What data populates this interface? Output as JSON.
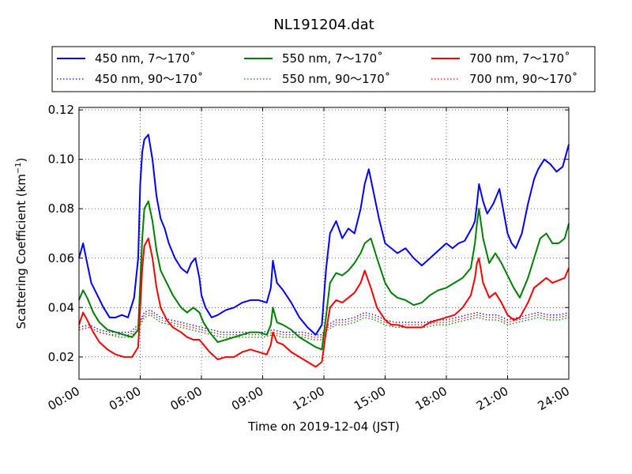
{
  "chart_data": {
    "type": "line",
    "title": "NL191204.dat",
    "xlabel": "Time on 2019-12-04 (JST)",
    "ylabel": "Scattering Coefficient (km",
    "ylabel_sup": "−1",
    "ylabel_close": ")",
    "xlim": [
      0,
      24
    ],
    "ylim": [
      0.011,
      0.121
    ],
    "x_tick_values": [
      0,
      3,
      6,
      9,
      12,
      15,
      18,
      21,
      24
    ],
    "x_tick_labels": [
      "00:00",
      "03:00",
      "06:00",
      "09:00",
      "12:00",
      "15:00",
      "18:00",
      "21:00",
      "24:00"
    ],
    "y_tick_values": [
      0.02,
      0.04,
      0.06,
      0.08,
      0.1,
      0.12
    ],
    "y_tick_labels": [
      "0.02",
      "0.04",
      "0.06",
      "0.08",
      "0.10",
      "0.12"
    ],
    "grid": true,
    "legend_position": "top",
    "series": [
      {
        "name": "450 nm, 7～170˚",
        "color": "#0000ff",
        "style": "solid",
        "x": [
          0,
          0.2,
          0.4,
          0.6,
          0.9,
          1.2,
          1.5,
          1.8,
          2.1,
          2.4,
          2.7,
          2.9,
          3.0,
          3.1,
          3.2,
          3.4,
          3.6,
          3.8,
          4.0,
          4.2,
          4.4,
          4.7,
          5.0,
          5.3,
          5.5,
          5.7,
          5.9,
          6.0,
          6.2,
          6.5,
          6.8,
          7.2,
          7.6,
          8.0,
          8.4,
          8.8,
          9.2,
          9.4,
          9.5,
          9.7,
          10.0,
          10.4,
          10.8,
          11.2,
          11.6,
          11.9,
          12.1,
          12.3,
          12.6,
          12.9,
          13.2,
          13.5,
          13.8,
          14.0,
          14.2,
          14.4,
          14.7,
          15.0,
          15.3,
          15.6,
          16.0,
          16.4,
          16.8,
          17.2,
          17.6,
          18.0,
          18.3,
          18.6,
          18.9,
          19.1,
          19.3,
          19.4,
          19.5,
          19.6,
          19.8,
          20.0,
          20.3,
          20.6,
          21.0,
          21.2,
          21.4,
          21.7,
          22.0,
          22.3,
          22.5,
          22.8,
          23.1,
          23.4,
          23.7,
          24
        ],
        "y": [
          0.06,
          0.066,
          0.058,
          0.05,
          0.045,
          0.04,
          0.036,
          0.036,
          0.037,
          0.036,
          0.044,
          0.06,
          0.09,
          0.103,
          0.108,
          0.11,
          0.1,
          0.085,
          0.076,
          0.072,
          0.066,
          0.06,
          0.056,
          0.054,
          0.058,
          0.06,
          0.052,
          0.045,
          0.04,
          0.036,
          0.037,
          0.039,
          0.04,
          0.042,
          0.043,
          0.043,
          0.042,
          0.048,
          0.059,
          0.05,
          0.047,
          0.042,
          0.036,
          0.032,
          0.029,
          0.033,
          0.055,
          0.07,
          0.075,
          0.068,
          0.072,
          0.07,
          0.08,
          0.09,
          0.096,
          0.088,
          0.076,
          0.066,
          0.064,
          0.062,
          0.064,
          0.06,
          0.057,
          0.06,
          0.063,
          0.066,
          0.064,
          0.066,
          0.067,
          0.07,
          0.073,
          0.075,
          0.082,
          0.09,
          0.083,
          0.078,
          0.082,
          0.088,
          0.07,
          0.066,
          0.064,
          0.07,
          0.082,
          0.092,
          0.096,
          0.1,
          0.098,
          0.095,
          0.097,
          0.106
        ]
      },
      {
        "name": "550 nm, 7～170˚",
        "color": "#008000",
        "style": "solid",
        "x": [
          0,
          0.2,
          0.4,
          0.7,
          1.0,
          1.4,
          1.8,
          2.2,
          2.6,
          2.9,
          3.0,
          3.1,
          3.2,
          3.4,
          3.6,
          3.8,
          4.0,
          4.3,
          4.6,
          5.0,
          5.3,
          5.6,
          5.9,
          6.1,
          6.4,
          6.8,
          7.2,
          7.6,
          8.0,
          8.4,
          8.8,
          9.2,
          9.4,
          9.5,
          9.7,
          10.0,
          10.4,
          10.8,
          11.2,
          11.6,
          11.9,
          12.1,
          12.3,
          12.6,
          12.9,
          13.2,
          13.5,
          13.8,
          14.0,
          14.3,
          14.6,
          15.0,
          15.3,
          15.6,
          16.0,
          16.4,
          16.8,
          17.2,
          17.6,
          18.0,
          18.4,
          18.8,
          19.2,
          19.4,
          19.5,
          19.6,
          19.8,
          20.1,
          20.4,
          20.7,
          21.0,
          21.3,
          21.6,
          22.0,
          22.3,
          22.6,
          22.9,
          23.2,
          23.5,
          23.8,
          24
        ],
        "y": [
          0.043,
          0.047,
          0.044,
          0.038,
          0.034,
          0.031,
          0.03,
          0.029,
          0.028,
          0.031,
          0.05,
          0.068,
          0.08,
          0.083,
          0.075,
          0.063,
          0.055,
          0.05,
          0.045,
          0.04,
          0.038,
          0.04,
          0.038,
          0.034,
          0.03,
          0.026,
          0.027,
          0.028,
          0.029,
          0.03,
          0.03,
          0.029,
          0.033,
          0.04,
          0.034,
          0.033,
          0.031,
          0.028,
          0.026,
          0.024,
          0.023,
          0.036,
          0.05,
          0.054,
          0.053,
          0.055,
          0.058,
          0.062,
          0.066,
          0.068,
          0.06,
          0.05,
          0.046,
          0.044,
          0.043,
          0.041,
          0.042,
          0.045,
          0.047,
          0.048,
          0.05,
          0.052,
          0.056,
          0.066,
          0.074,
          0.08,
          0.068,
          0.058,
          0.062,
          0.058,
          0.053,
          0.048,
          0.044,
          0.052,
          0.06,
          0.068,
          0.07,
          0.066,
          0.066,
          0.068,
          0.074
        ]
      },
      {
        "name": "700 nm, 7～170˚",
        "color": "#ff0000",
        "style": "solid",
        "x": [
          0,
          0.2,
          0.4,
          0.7,
          1.0,
          1.4,
          1.8,
          2.2,
          2.6,
          2.9,
          3.0,
          3.1,
          3.2,
          3.4,
          3.6,
          3.8,
          4.0,
          4.3,
          4.6,
          5.0,
          5.3,
          5.6,
          5.9,
          6.1,
          6.4,
          6.8,
          7.2,
          7.6,
          8.0,
          8.4,
          8.8,
          9.2,
          9.4,
          9.5,
          9.7,
          10.0,
          10.4,
          10.8,
          11.2,
          11.6,
          11.9,
          12.1,
          12.3,
          12.6,
          12.9,
          13.2,
          13.5,
          13.8,
          14.0,
          14.3,
          14.6,
          15.0,
          15.3,
          15.6,
          16.0,
          16.4,
          16.8,
          17.2,
          17.6,
          18.0,
          18.4,
          18.8,
          19.2,
          19.4,
          19.5,
          19.6,
          19.8,
          20.1,
          20.4,
          20.7,
          21.0,
          21.3,
          21.6,
          22.0,
          22.3,
          22.6,
          22.9,
          23.2,
          23.5,
          23.8,
          24
        ],
        "y": [
          0.033,
          0.038,
          0.035,
          0.03,
          0.026,
          0.023,
          0.021,
          0.02,
          0.02,
          0.024,
          0.04,
          0.056,
          0.065,
          0.068,
          0.06,
          0.048,
          0.04,
          0.035,
          0.032,
          0.03,
          0.028,
          0.027,
          0.027,
          0.025,
          0.022,
          0.019,
          0.02,
          0.02,
          0.022,
          0.023,
          0.022,
          0.021,
          0.025,
          0.03,
          0.026,
          0.025,
          0.022,
          0.02,
          0.018,
          0.016,
          0.018,
          0.03,
          0.04,
          0.043,
          0.042,
          0.044,
          0.046,
          0.05,
          0.055,
          0.048,
          0.04,
          0.035,
          0.033,
          0.033,
          0.032,
          0.032,
          0.032,
          0.034,
          0.035,
          0.036,
          0.037,
          0.04,
          0.045,
          0.052,
          0.058,
          0.06,
          0.05,
          0.044,
          0.046,
          0.042,
          0.037,
          0.035,
          0.036,
          0.042,
          0.048,
          0.05,
          0.052,
          0.05,
          0.051,
          0.052,
          0.056
        ]
      },
      {
        "name": "450 nm, 90～170˚",
        "color": "#0000ff",
        "style": "dotted",
        "x": [
          0,
          0.5,
          1.0,
          1.5,
          2.0,
          2.5,
          2.9,
          3.2,
          3.5,
          4.0,
          4.5,
          5.0,
          5.5,
          6.0,
          6.5,
          7.0,
          7.5,
          8.0,
          8.5,
          9.0,
          9.5,
          10.0,
          10.5,
          11.0,
          11.5,
          11.9,
          12.2,
          12.6,
          13.0,
          13.5,
          14.0,
          14.5,
          15.0,
          15.5,
          16.0,
          16.5,
          17.0,
          17.5,
          18.0,
          18.5,
          19.0,
          19.5,
          20.0,
          20.5,
          21.0,
          21.5,
          22.0,
          22.5,
          23.0,
          23.5,
          24
        ],
        "y": [
          0.032,
          0.033,
          0.031,
          0.03,
          0.03,
          0.03,
          0.033,
          0.038,
          0.039,
          0.036,
          0.035,
          0.034,
          0.033,
          0.032,
          0.031,
          0.03,
          0.03,
          0.03,
          0.03,
          0.03,
          0.031,
          0.03,
          0.03,
          0.03,
          0.029,
          0.029,
          0.033,
          0.035,
          0.035,
          0.036,
          0.038,
          0.037,
          0.035,
          0.034,
          0.034,
          0.034,
          0.034,
          0.035,
          0.035,
          0.036,
          0.037,
          0.038,
          0.037,
          0.037,
          0.035,
          0.036,
          0.037,
          0.038,
          0.037,
          0.037,
          0.038
        ]
      },
      {
        "name": "550 nm, 90～170˚",
        "color": "#008000",
        "style": "dotted",
        "x": [
          0,
          0.5,
          1.0,
          1.5,
          2.0,
          2.5,
          2.9,
          3.2,
          3.5,
          4.0,
          4.5,
          5.0,
          5.5,
          6.0,
          6.5,
          7.0,
          7.5,
          8.0,
          8.5,
          9.0,
          9.5,
          10.0,
          10.5,
          11.0,
          11.5,
          11.9,
          12.2,
          12.6,
          13.0,
          13.5,
          14.0,
          14.5,
          15.0,
          15.5,
          16.0,
          16.5,
          17.0,
          17.5,
          18.0,
          18.5,
          19.0,
          19.5,
          20.0,
          20.5,
          21.0,
          21.5,
          22.0,
          22.5,
          23.0,
          23.5,
          24
        ],
        "y": [
          0.031,
          0.032,
          0.03,
          0.029,
          0.028,
          0.028,
          0.031,
          0.036,
          0.037,
          0.034,
          0.033,
          0.032,
          0.031,
          0.03,
          0.029,
          0.028,
          0.028,
          0.028,
          0.028,
          0.028,
          0.029,
          0.028,
          0.028,
          0.028,
          0.027,
          0.027,
          0.031,
          0.033,
          0.033,
          0.034,
          0.036,
          0.035,
          0.033,
          0.032,
          0.032,
          0.032,
          0.032,
          0.033,
          0.033,
          0.034,
          0.035,
          0.036,
          0.035,
          0.035,
          0.033,
          0.034,
          0.035,
          0.036,
          0.035,
          0.035,
          0.036
        ]
      },
      {
        "name": "700 nm, 90～170˚",
        "color": "#ff0000",
        "style": "dotted",
        "x": [
          0,
          0.5,
          1.0,
          1.5,
          2.0,
          2.5,
          2.9,
          3.2,
          3.5,
          4.0,
          4.5,
          5.0,
          5.5,
          6.0,
          6.5,
          7.0,
          7.5,
          8.0,
          8.5,
          9.0,
          9.5,
          10.0,
          10.5,
          11.0,
          11.5,
          11.9,
          12.2,
          12.6,
          13.0,
          13.5,
          14.0,
          14.5,
          15.0,
          15.5,
          16.0,
          16.5,
          17.0,
          17.5,
          18.0,
          18.5,
          19.0,
          19.5,
          20.0,
          20.5,
          21.0,
          21.5,
          22.0,
          22.5,
          23.0,
          23.5,
          24
        ],
        "y": [
          0.031,
          0.032,
          0.03,
          0.029,
          0.029,
          0.029,
          0.032,
          0.037,
          0.038,
          0.035,
          0.034,
          0.033,
          0.032,
          0.031,
          0.03,
          0.029,
          0.029,
          0.029,
          0.029,
          0.029,
          0.03,
          0.029,
          0.029,
          0.029,
          0.028,
          0.028,
          0.032,
          0.034,
          0.034,
          0.035,
          0.037,
          0.036,
          0.034,
          0.033,
          0.033,
          0.033,
          0.033,
          0.034,
          0.034,
          0.035,
          0.036,
          0.037,
          0.036,
          0.036,
          0.034,
          0.035,
          0.036,
          0.037,
          0.036,
          0.036,
          0.037
        ]
      }
    ]
  }
}
